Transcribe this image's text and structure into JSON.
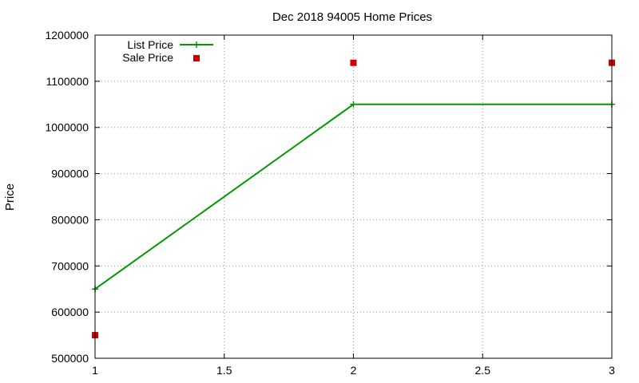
{
  "chart_data": {
    "type": "line",
    "title": "Dec 2018 94005 Home Prices",
    "xlabel": "",
    "ylabel": "Price",
    "xlim": [
      1,
      3
    ],
    "ylim": [
      500000,
      1200000
    ],
    "xticks": [
      1,
      1.5,
      2,
      2.5,
      3
    ],
    "yticks": [
      500000,
      600000,
      700000,
      800000,
      900000,
      1000000,
      1100000,
      1200000
    ],
    "grid": true,
    "legend_position": "top-left",
    "series": [
      {
        "name": "List Price",
        "style": "lines+points",
        "color": "#009900",
        "x": [
          1,
          2,
          3
        ],
        "y": [
          650000,
          1050000,
          1050000
        ]
      },
      {
        "name": "Sale Price",
        "style": "points",
        "color": "#cc0000",
        "x": [
          1,
          2,
          3
        ],
        "y": [
          550000,
          1140000,
          1140000
        ]
      }
    ]
  }
}
